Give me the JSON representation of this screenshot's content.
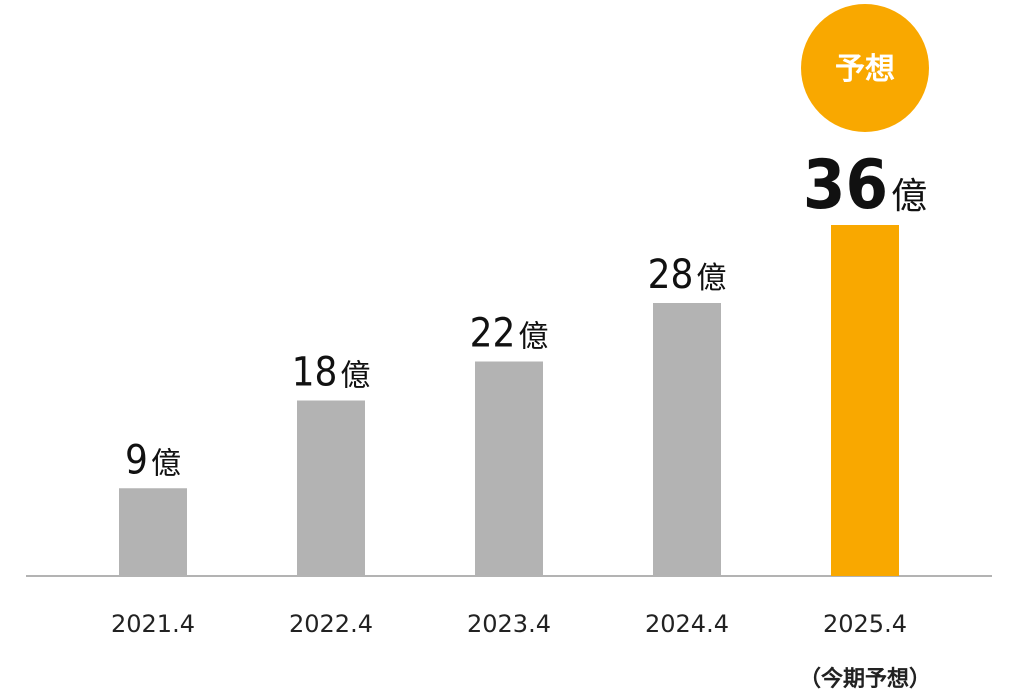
{
  "chart_data": {
    "type": "bar",
    "categories": [
      "2021.4",
      "2022.4",
      "2023.4",
      "2024.4",
      "2025.4"
    ],
    "category_sublabels": [
      "",
      "",
      "",
      "",
      "（今期予想）"
    ],
    "values": [
      9,
      18,
      22,
      28,
      36
    ],
    "value_labels": [
      "9",
      "18",
      "22",
      "28",
      "36"
    ],
    "unit": "億",
    "highlight_index": 4,
    "highlight_badge": "予想",
    "colors": {
      "bar": "#b3b3b3",
      "highlight": "#f9a800",
      "badge": "#f9a800",
      "baseline": "#b3b3b3"
    },
    "title": "",
    "xlabel": "",
    "ylabel": "",
    "ylim": [
      0,
      36
    ],
    "grid": false,
    "legend": "none"
  }
}
